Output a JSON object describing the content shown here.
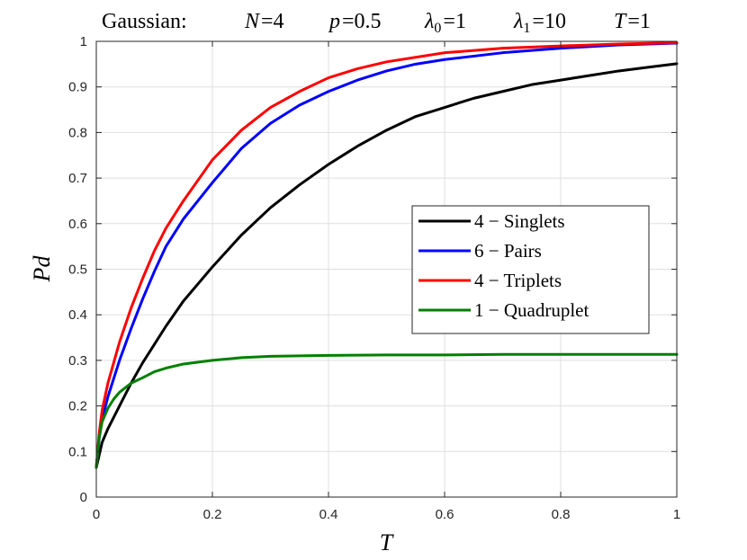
{
  "chart_data": {
    "type": "line",
    "title": {
      "prefix": "Gaussian:",
      "params": [
        {
          "sym": "N",
          "sub": "",
          "val": "=4"
        },
        {
          "sym": "p",
          "sub": "",
          "val": "=0.5"
        },
        {
          "sym": "λ",
          "sub": "0",
          "val": "=1"
        },
        {
          "sym": "λ",
          "sub": "1",
          "val": "=10"
        },
        {
          "sym": "T",
          "sub": "",
          "val": "=1"
        }
      ]
    },
    "xlabel": "T",
    "ylabel": "Pd",
    "xlim": [
      0,
      1
    ],
    "ylim": [
      0,
      1
    ],
    "xticks": [
      0,
      0.2,
      0.4,
      0.6,
      0.8,
      1
    ],
    "xtick_labels": [
      "0",
      "0.2",
      "0.4",
      "0.6",
      "0.8",
      "1"
    ],
    "yticks": [
      0,
      0.1,
      0.2,
      0.3,
      0.4,
      0.5,
      0.6,
      0.7,
      0.8,
      0.9,
      1
    ],
    "ytick_labels": [
      "0",
      "0.1",
      "0.2",
      "0.3",
      "0.4",
      "0.5",
      "0.6",
      "0.7",
      "0.8",
      "0.9",
      "1"
    ],
    "grid": true,
    "legend_position": "center-right",
    "series": [
      {
        "name": "4 − Singlets",
        "color": "#000000",
        "x": [
          0,
          0.01,
          0.02,
          0.04,
          0.06,
          0.08,
          0.1,
          0.12,
          0.15,
          0.2,
          0.25,
          0.3,
          0.35,
          0.4,
          0.45,
          0.5,
          0.55,
          0.6,
          0.65,
          0.7,
          0.75,
          0.8,
          0.85,
          0.9,
          0.95,
          1.0
        ],
        "y": [
          0.065,
          0.12,
          0.15,
          0.2,
          0.25,
          0.295,
          0.335,
          0.375,
          0.43,
          0.505,
          0.575,
          0.635,
          0.685,
          0.73,
          0.77,
          0.805,
          0.835,
          0.855,
          0.875,
          0.89,
          0.905,
          0.915,
          0.925,
          0.935,
          0.943,
          0.951
        ]
      },
      {
        "name": "6 − Pairs",
        "color": "#0000ff",
        "x": [
          0,
          0.005,
          0.01,
          0.02,
          0.04,
          0.06,
          0.08,
          0.1,
          0.12,
          0.15,
          0.2,
          0.25,
          0.3,
          0.35,
          0.4,
          0.45,
          0.5,
          0.55,
          0.6,
          0.7,
          0.8,
          0.9,
          1.0
        ],
        "y": [
          0.065,
          0.13,
          0.17,
          0.22,
          0.3,
          0.37,
          0.435,
          0.495,
          0.55,
          0.61,
          0.69,
          0.765,
          0.82,
          0.86,
          0.89,
          0.915,
          0.935,
          0.95,
          0.96,
          0.975,
          0.985,
          0.992,
          0.996
        ]
      },
      {
        "name": "4 − Triplets",
        "color": "#ff0000",
        "x": [
          0,
          0.005,
          0.01,
          0.02,
          0.04,
          0.06,
          0.08,
          0.1,
          0.12,
          0.15,
          0.2,
          0.25,
          0.3,
          0.35,
          0.4,
          0.45,
          0.5,
          0.55,
          0.6,
          0.7,
          0.8,
          0.9,
          1.0
        ],
        "y": [
          0.065,
          0.14,
          0.19,
          0.25,
          0.34,
          0.415,
          0.48,
          0.54,
          0.59,
          0.65,
          0.74,
          0.805,
          0.855,
          0.89,
          0.92,
          0.94,
          0.955,
          0.965,
          0.975,
          0.985,
          0.99,
          0.994,
          0.997
        ]
      },
      {
        "name": "1 − Quadruplet",
        "color": "#008000",
        "x": [
          0,
          0.005,
          0.01,
          0.02,
          0.03,
          0.04,
          0.05,
          0.06,
          0.08,
          0.1,
          0.12,
          0.15,
          0.2,
          0.25,
          0.3,
          0.35,
          0.4,
          0.5,
          0.6,
          0.7,
          0.8,
          0.9,
          1.0
        ],
        "y": [
          0.065,
          0.13,
          0.165,
          0.195,
          0.215,
          0.23,
          0.24,
          0.25,
          0.262,
          0.275,
          0.283,
          0.292,
          0.3,
          0.306,
          0.309,
          0.31,
          0.311,
          0.312,
          0.312,
          0.313,
          0.313,
          0.313,
          0.313
        ]
      }
    ]
  }
}
